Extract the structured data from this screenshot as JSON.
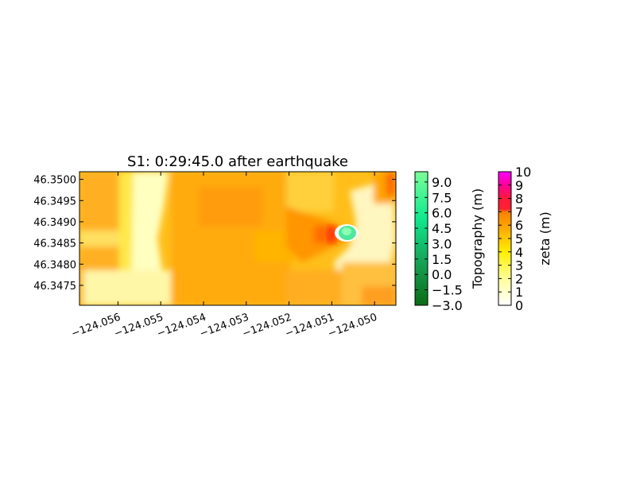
{
  "chart_data": {
    "type": "heatmap",
    "title": "S1: 0:29:45.0 after earthquake",
    "xlim": [
      -124.0569,
      -124.0495
    ],
    "ylim": [
      46.34703,
      46.35018
    ],
    "x_ticks": [
      -124.056,
      -124.055,
      -124.054,
      -124.053,
      -124.052,
      -124.051,
      -124.05
    ],
    "x_tick_labels": [
      "−124.056",
      "−124.055",
      "−124.054",
      "−124.053",
      "−124.052",
      "−124.051",
      "−124.050"
    ],
    "y_ticks": [
      46.3475,
      46.348,
      46.3485,
      46.349,
      46.3495,
      46.35
    ],
    "y_tick_labels": [
      "46.3475",
      "46.3480",
      "46.3485",
      "46.3490",
      "46.3495",
      "46.3500"
    ],
    "field": {
      "name": "zeta",
      "description_regions": [
        {
          "x": -124.0565,
          "y": 46.3488,
          "value": 5.2
        },
        {
          "x": -124.0553,
          "y": 46.3485,
          "value": 1.5
        },
        {
          "x": -124.0545,
          "y": 46.3489,
          "value": 5.8
        },
        {
          "x": -124.053,
          "y": 46.3492,
          "value": 5.4
        },
        {
          "x": -124.052,
          "y": 46.3484,
          "value": 6.4
        },
        {
          "x": -124.0515,
          "y": 46.3486,
          "value": 7.8
        },
        {
          "x": -124.0505,
          "y": 46.348,
          "value": 1.5
        },
        {
          "x": -124.0498,
          "y": 46.3499,
          "value": 7.0
        }
      ],
      "topography_island": {
        "x": -124.051,
        "y": 46.34866,
        "value": 8.0
      }
    },
    "colorbars": [
      {
        "name": "topography",
        "label": "Topography (m)",
        "range": [
          -3.0,
          10.0
        ],
        "tick_labels": [
          "9.0",
          "7.5",
          "6.0",
          "4.5",
          "3.0",
          "1.5",
          "0.0",
          "−1.5",
          "−3.0"
        ],
        "tick_values": [
          9.0,
          7.5,
          6.0,
          4.5,
          3.0,
          1.5,
          0.0,
          -1.5,
          -3.0
        ],
        "colors": {
          "low": "#0b6b16",
          "mid": "#10ce7a",
          "high": "#7bff99"
        }
      },
      {
        "name": "zeta",
        "label": "zeta (m)",
        "range": [
          0,
          10
        ],
        "tick_labels": [
          "10",
          "9",
          "8",
          "7",
          "6",
          "5",
          "4",
          "3",
          "2",
          "1",
          "0"
        ],
        "tick_values": [
          10,
          9,
          8,
          7,
          6,
          5,
          4,
          3,
          2,
          1,
          0
        ],
        "colors": {
          "0": "#ffffff",
          "2": "#ffff9a",
          "4": "#ffee00",
          "6": "#ffa500",
          "7": "#ff7a00",
          "8": "#ff1a3a",
          "10": "#ff00ff"
        }
      }
    ]
  }
}
